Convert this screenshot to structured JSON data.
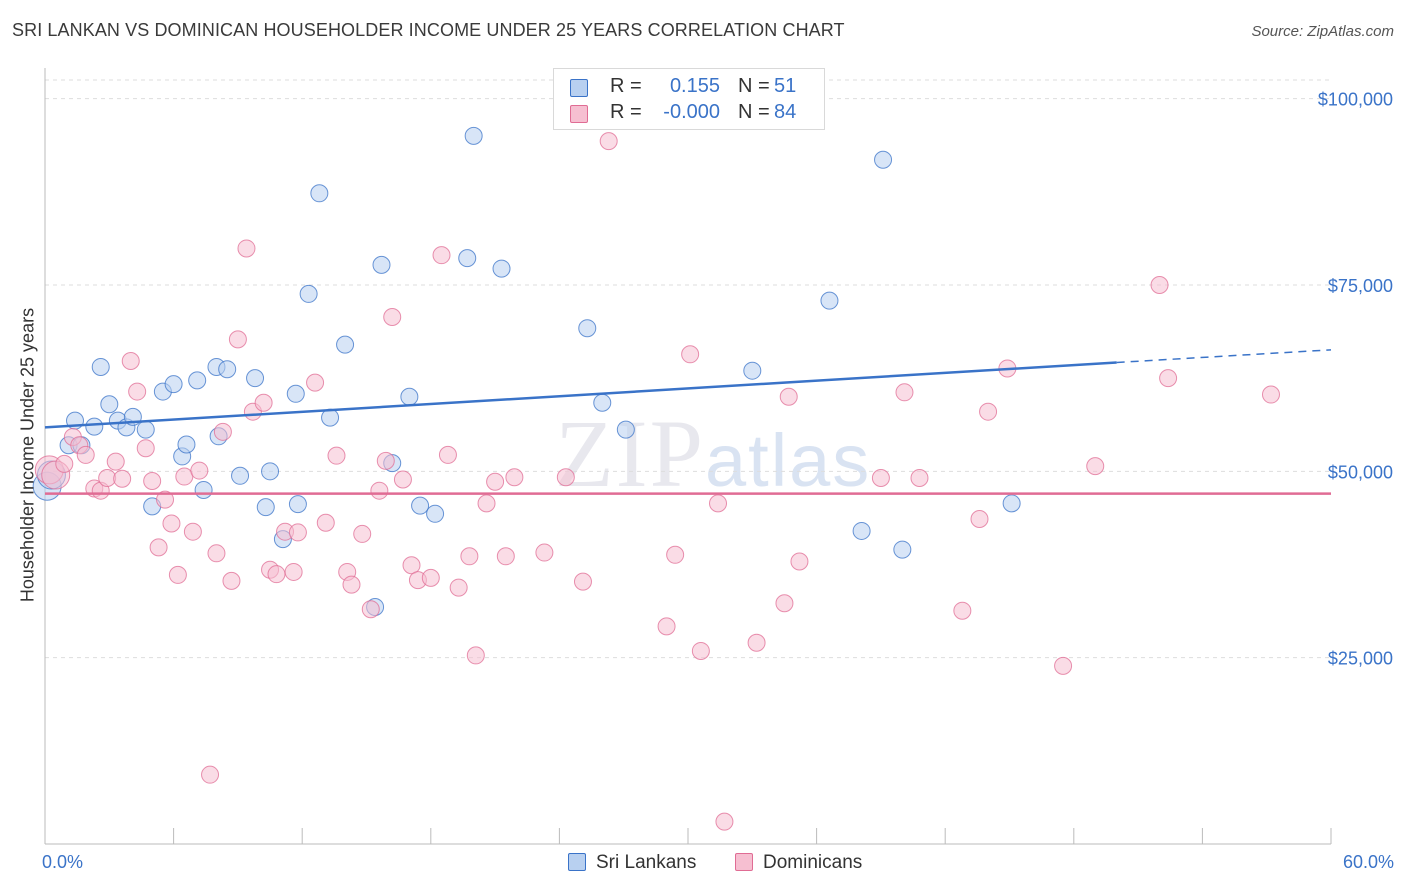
{
  "title": "SRI LANKAN VS DOMINICAN HOUSEHOLDER INCOME UNDER 25 YEARS CORRELATION CHART",
  "source": "Source: ZipAtlas.com",
  "watermark": {
    "zip": "ZIP",
    "atlas": "atlas"
  },
  "colors": {
    "sri_lankans": "#3a73c8",
    "sri_lankans_fill": "#b8d0f0",
    "dominicans": "#e06c94",
    "dominicans_fill": "#f6bfd1",
    "axis_text": "#3a73c8",
    "grid": "#dddddd"
  },
  "legend": {
    "rows": [
      {
        "r_label": "R =",
        "r_value": "0.155",
        "n_label": "N =",
        "n_value": "51"
      },
      {
        "r_label": "R =",
        "r_value": "-0.000",
        "n_label": "N =",
        "n_value": "84"
      }
    ],
    "bottom": [
      {
        "label": "Sri Lankans"
      },
      {
        "label": "Dominicans"
      }
    ]
  },
  "chart_data": {
    "type": "scatter",
    "title": "SRI LANKAN VS DOMINICAN HOUSEHOLDER INCOME UNDER 25 YEARS CORRELATION CHART",
    "xlabel": "",
    "ylabel": "Householder Income Under 25 years",
    "xlim": [
      0,
      60
    ],
    "ylim": [
      0,
      102500
    ],
    "x_tick_labels": {
      "min": "0.0%",
      "max": "60.0%"
    },
    "y_ticks": [
      {
        "value": 25000,
        "label": "$25,000"
      },
      {
        "value": 50000,
        "label": "$50,000"
      },
      {
        "value": 75000,
        "label": "$75,000"
      },
      {
        "value": 100000,
        "label": "$100,000"
      }
    ],
    "grid": true,
    "legend_position": "top-center",
    "series": [
      {
        "name": "Sri Lankans",
        "r": 0.155,
        "n": 51,
        "trend": {
          "x_start": 0,
          "y_start": 55900,
          "x_solid_end": 50,
          "y_solid_end": 64600,
          "x_end": 60,
          "y_end": 66300
        },
        "points": [
          [
            0.1,
            48000
          ],
          [
            0.3,
            49500
          ],
          [
            1.1,
            53500
          ],
          [
            1.4,
            56800
          ],
          [
            1.7,
            53500
          ],
          [
            2.3,
            56000
          ],
          [
            2.6,
            64000
          ],
          [
            3.0,
            59000
          ],
          [
            3.4,
            56800
          ],
          [
            3.8,
            55900
          ],
          [
            4.1,
            57300
          ],
          [
            4.7,
            55600
          ],
          [
            5.0,
            45300
          ],
          [
            5.5,
            60700
          ],
          [
            6.0,
            61700
          ],
          [
            6.4,
            52000
          ],
          [
            6.6,
            53600
          ],
          [
            7.1,
            62200
          ],
          [
            7.4,
            47500
          ],
          [
            8.1,
            54700
          ],
          [
            8.0,
            64000
          ],
          [
            8.5,
            63700
          ],
          [
            9.1,
            49400
          ],
          [
            9.8,
            62500
          ],
          [
            10.3,
            45200
          ],
          [
            10.5,
            50000
          ],
          [
            11.1,
            40900
          ],
          [
            11.7,
            60400
          ],
          [
            11.8,
            45600
          ],
          [
            12.3,
            73800
          ],
          [
            12.8,
            87300
          ],
          [
            13.3,
            57200
          ],
          [
            14.0,
            67000
          ],
          [
            15.4,
            31800
          ],
          [
            15.7,
            77700
          ],
          [
            16.2,
            51100
          ],
          [
            17.0,
            60000
          ],
          [
            17.5,
            45400
          ],
          [
            18.2,
            44300
          ],
          [
            19.7,
            78600
          ],
          [
            20.0,
            95000
          ],
          [
            21.3,
            77200
          ],
          [
            25.3,
            69200
          ],
          [
            26.0,
            59200
          ],
          [
            27.1,
            55600
          ],
          [
            33.0,
            63500
          ],
          [
            36.6,
            72900
          ],
          [
            38.1,
            42000
          ],
          [
            39.1,
            91800
          ],
          [
            40.0,
            39500
          ],
          [
            45.1,
            45700
          ]
        ]
      },
      {
        "name": "Dominicans",
        "r": -0.0,
        "n": 84,
        "trend": {
          "x_start": 0,
          "y_start": 47000,
          "x_end": 60,
          "y_end": 47000
        },
        "points": [
          [
            0.2,
            50200
          ],
          [
            0.5,
            49500
          ],
          [
            0.9,
            51000
          ],
          [
            1.3,
            54600
          ],
          [
            1.6,
            53500
          ],
          [
            1.9,
            52200
          ],
          [
            2.3,
            47700
          ],
          [
            2.6,
            47400
          ],
          [
            2.9,
            49100
          ],
          [
            3.3,
            51300
          ],
          [
            3.6,
            49000
          ],
          [
            4.0,
            64800
          ],
          [
            4.3,
            60700
          ],
          [
            4.7,
            53100
          ],
          [
            5.0,
            48700
          ],
          [
            5.3,
            39800
          ],
          [
            5.6,
            46200
          ],
          [
            5.9,
            43000
          ],
          [
            6.2,
            36100
          ],
          [
            6.5,
            49300
          ],
          [
            6.9,
            41900
          ],
          [
            7.2,
            50100
          ],
          [
            7.7,
            9300
          ],
          [
            8.0,
            39000
          ],
          [
            8.3,
            55300
          ],
          [
            8.7,
            35300
          ],
          [
            9.0,
            67700
          ],
          [
            9.4,
            79900
          ],
          [
            9.7,
            58000
          ],
          [
            10.2,
            59200
          ],
          [
            10.5,
            36800
          ],
          [
            10.8,
            36200
          ],
          [
            11.2,
            41900
          ],
          [
            11.6,
            36500
          ],
          [
            11.8,
            41800
          ],
          [
            12.6,
            61900
          ],
          [
            13.1,
            43100
          ],
          [
            13.6,
            52100
          ],
          [
            14.1,
            36500
          ],
          [
            14.3,
            34800
          ],
          [
            14.8,
            41600
          ],
          [
            15.2,
            31500
          ],
          [
            15.6,
            47400
          ],
          [
            15.9,
            51400
          ],
          [
            16.2,
            70700
          ],
          [
            16.7,
            48900
          ],
          [
            17.1,
            37400
          ],
          [
            17.4,
            35400
          ],
          [
            18.0,
            35700
          ],
          [
            18.5,
            79000
          ],
          [
            18.8,
            52200
          ],
          [
            19.3,
            34400
          ],
          [
            19.8,
            38600
          ],
          [
            20.1,
            25300
          ],
          [
            20.6,
            45700
          ],
          [
            21.0,
            48600
          ],
          [
            21.5,
            38600
          ],
          [
            21.9,
            49200
          ],
          [
            23.3,
            39100
          ],
          [
            24.3,
            49200
          ],
          [
            25.1,
            35200
          ],
          [
            26.3,
            94300
          ],
          [
            29.0,
            29200
          ],
          [
            29.4,
            38800
          ],
          [
            30.1,
            65700
          ],
          [
            30.6,
            25900
          ],
          [
            31.4,
            45700
          ],
          [
            31.7,
            3000
          ],
          [
            33.2,
            27000
          ],
          [
            34.5,
            32300
          ],
          [
            34.7,
            60000
          ],
          [
            35.2,
            37900
          ],
          [
            39.0,
            49100
          ],
          [
            40.1,
            60600
          ],
          [
            40.8,
            49100
          ],
          [
            42.8,
            31300
          ],
          [
            43.6,
            43600
          ],
          [
            44.0,
            58000
          ],
          [
            44.9,
            63800
          ],
          [
            47.5,
            23900
          ],
          [
            49.0,
            50700
          ],
          [
            52.0,
            75000
          ],
          [
            52.4,
            62500
          ],
          [
            57.2,
            60300
          ]
        ]
      }
    ]
  }
}
